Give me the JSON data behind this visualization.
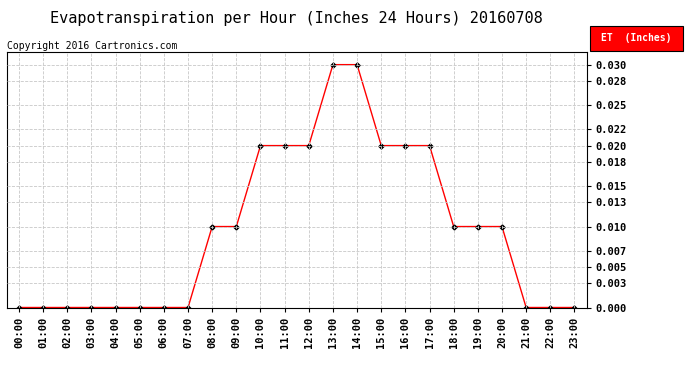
{
  "title": "Evapotranspiration per Hour (Inches 24 Hours) 20160708",
  "copyright": "Copyright 2016 Cartronics.com",
  "legend_label": "ET  (Inches)",
  "legend_bg": "#ff0000",
  "legend_text_color": "#ffffff",
  "x_labels": [
    "00:00",
    "01:00",
    "02:00",
    "03:00",
    "04:00",
    "05:00",
    "06:00",
    "07:00",
    "08:00",
    "09:00",
    "10:00",
    "11:00",
    "12:00",
    "13:00",
    "14:00",
    "15:00",
    "16:00",
    "17:00",
    "18:00",
    "19:00",
    "20:00",
    "21:00",
    "22:00",
    "23:00"
  ],
  "hours": [
    0,
    1,
    2,
    3,
    4,
    5,
    6,
    7,
    8,
    9,
    10,
    11,
    12,
    13,
    14,
    15,
    16,
    17,
    18,
    19,
    20,
    21,
    22,
    23
  ],
  "values": [
    0.0,
    0.0,
    0.0,
    0.0,
    0.0,
    0.0,
    0.0,
    0.0,
    0.01,
    0.01,
    0.02,
    0.02,
    0.02,
    0.03,
    0.03,
    0.02,
    0.02,
    0.02,
    0.01,
    0.01,
    0.01,
    0.0,
    0.0,
    0.0
  ],
  "line_color": "#ff0000",
  "marker_color": "#000000",
  "bg_color": "#ffffff",
  "grid_color": "#c8c8c8",
  "title_fontsize": 11,
  "copyright_fontsize": 7,
  "tick_fontsize": 7.5,
  "ylim": [
    0.0,
    0.0315
  ],
  "yticks": [
    0.0,
    0.003,
    0.005,
    0.007,
    0.01,
    0.013,
    0.015,
    0.018,
    0.02,
    0.022,
    0.025,
    0.028,
    0.03
  ]
}
